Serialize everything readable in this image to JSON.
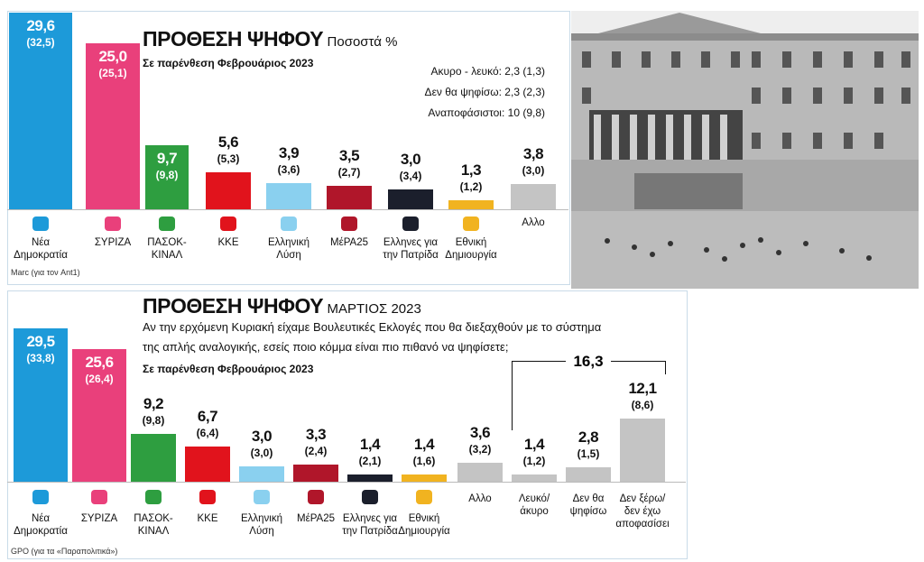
{
  "chart_data": [
    {
      "type": "bar",
      "title": "ΠΡΟΘΕΣΗ ΨΗΦΟΥ",
      "title_note": "Ποσοστά %",
      "subtitle": "Σε παρένθεση Φεβρουάριος 2023",
      "notes": [
        "Ακυρο - λευκό: 2,3 (1,3)",
        "Δεν θα ψηφίσω: 2,3 (2,3)",
        "Αναποφάσιστοι: 10 (9,8)"
      ],
      "categories": [
        "Νέα Δημοκρατία",
        "ΣΥΡΙΖΑ",
        "ΠΑΣΟΚ-ΚΙΝΑΛ",
        "ΚΚΕ",
        "Ελληνική Λύση",
        "ΜέΡΑ25",
        "Ελληνες για την Πατρίδα",
        "Εθνική Δημιουργία",
        "Αλλο"
      ],
      "values": [
        29.6,
        25.0,
        9.7,
        5.6,
        3.9,
        3.5,
        3.0,
        1.3,
        3.8
      ],
      "value_labels": [
        "29,6",
        "25,0",
        "9,7",
        "5,6",
        "3,9",
        "3,5",
        "3,0",
        "1,3",
        "3,8"
      ],
      "previous_values": [
        32.5,
        25.1,
        9.8,
        5.3,
        3.6,
        2.7,
        3.4,
        1.2,
        3.0
      ],
      "previous_labels": [
        "(32,5)",
        "(25,1)",
        "(9,8)",
        "(5,3)",
        "(3,6)",
        "(2,7)",
        "(3,4)",
        "(1,2)",
        "(3,0)"
      ],
      "colors": [
        "#1d9ad9",
        "#e9407b",
        "#2e9e40",
        "#e1131c",
        "#8ad0ef",
        "#b0162a",
        "#1b1f2c",
        "#f1b320",
        "#c4c4c4"
      ],
      "source": "Marc (για τον Ant1)"
    },
    {
      "type": "bar",
      "title": "ΠΡΟΘΕΣΗ ΨΗΦΟΥ",
      "title_note": "ΜΑΡΤΙΟΣ 2023",
      "question": [
        "Αν την ερχόμενη Κυριακή είχαμε Βουλευτικές Εκλογές που θα διεξαχθούν με το σύστημα",
        "της απλής αναλογικής, εσείς ποιο κόμμα είναι πιο πιθανό να ψηφίσετε;"
      ],
      "subtitle": "Σε παρένθεση Φεβρουάριος 2023",
      "categories": [
        "Νέα Δημοκρατία",
        "ΣΥΡΙΖΑ",
        "ΠΑΣΟΚ-ΚΙΝΑΛ",
        "ΚΚΕ",
        "Ελληνική Λύση",
        "ΜέΡΑ25",
        "Ελληνες για την Πατρίδα",
        "Εθνική Δημιουργία",
        "Αλλο",
        "Λευκό/ άκυρο",
        "Δεν θα ψηφίσω",
        "Δεν ξέρω/ δεν έχω αποφασίσει"
      ],
      "values": [
        29.5,
        25.6,
        9.2,
        6.7,
        3.0,
        3.3,
        1.4,
        1.4,
        3.6,
        1.4,
        2.8,
        12.1
      ],
      "value_labels": [
        "29,5",
        "25,6",
        "9,2",
        "6,7",
        "3,0",
        "3,3",
        "1,4",
        "1,4",
        "3,6",
        "1,4",
        "2,8",
        "12,1"
      ],
      "previous_values": [
        33.8,
        26.4,
        9.8,
        6.4,
        3.0,
        2.4,
        2.1,
        1.6,
        3.2,
        1.2,
        1.5,
        8.6
      ],
      "previous_labels": [
        "(33,8)",
        "(26,4)",
        "(9,8)",
        "(6,4)",
        "(3,0)",
        "(2,4)",
        "(2,1)",
        "(1,6)",
        "(3,2)",
        "(1,2)",
        "(1,5)",
        "(8,6)"
      ],
      "colors": [
        "#1d9ad9",
        "#e9407b",
        "#2e9e40",
        "#e1131c",
        "#8ad0ef",
        "#b0162a",
        "#1b1f2c",
        "#f1b320",
        "#c4c4c4",
        "#c4c4c4",
        "#c4c4c4",
        "#c4c4c4"
      ],
      "group_total": 16.3,
      "group_total_label": "16,3",
      "source": "GPO (για τα «Παραπολιτικά»)"
    }
  ]
}
